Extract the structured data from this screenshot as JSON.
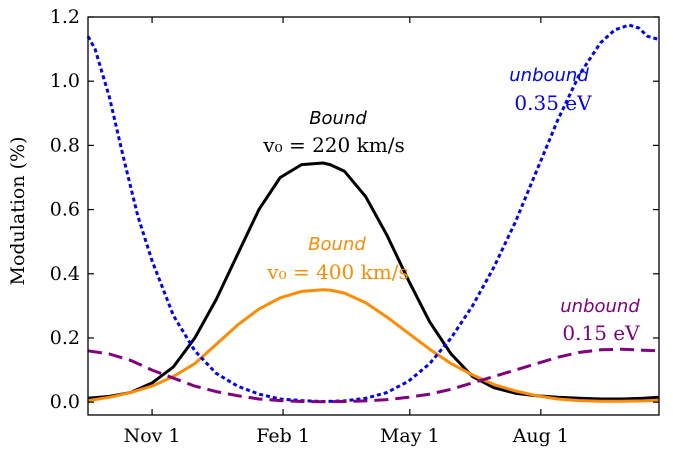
{
  "chart_data": {
    "type": "line",
    "title": "",
    "xlabel": "",
    "ylabel": "Modulation (%)",
    "xlim": [
      -45,
      356
    ],
    "ylim": [
      -0.04,
      1.2
    ],
    "x_unit": "days relative to Nov 1",
    "xticks": [
      {
        "value": 0,
        "label": "Nov 1"
      },
      {
        "value": 92,
        "label": "Feb 1"
      },
      {
        "value": 181,
        "label": "May 1"
      },
      {
        "value": 273,
        "label": "Aug 1"
      }
    ],
    "yticks": [
      {
        "value": 0.0,
        "label": "0.0"
      },
      {
        "value": 0.2,
        "label": "0.2"
      },
      {
        "value": 0.4,
        "label": "0.4"
      },
      {
        "value": 0.6,
        "label": "0.6"
      },
      {
        "value": 0.8,
        "label": "0.8"
      },
      {
        "value": 1.0,
        "label": "1.0"
      },
      {
        "value": 1.2,
        "label": "1.2"
      }
    ],
    "grid": false,
    "series": [
      {
        "key": "bound220",
        "color": "#000000",
        "style": "solid",
        "x": [
          -45,
          -30,
          -15,
          0,
          15,
          30,
          45,
          60,
          75,
          90,
          105,
          120,
          125,
          135,
          150,
          165,
          180,
          195,
          210,
          225,
          240,
          255,
          270,
          285,
          300,
          315,
          330,
          345,
          356
        ],
        "y": [
          0.012,
          0.018,
          0.03,
          0.06,
          0.11,
          0.2,
          0.32,
          0.46,
          0.6,
          0.7,
          0.74,
          0.745,
          0.74,
          0.72,
          0.64,
          0.52,
          0.38,
          0.25,
          0.15,
          0.08,
          0.045,
          0.028,
          0.02,
          0.015,
          0.012,
          0.01,
          0.01,
          0.012,
          0.015
        ]
      },
      {
        "key": "bound400",
        "color": "#FF8C00",
        "style": "solid",
        "x": [
          -45,
          -30,
          -15,
          0,
          15,
          30,
          45,
          60,
          75,
          90,
          105,
          120,
          125,
          135,
          150,
          165,
          180,
          195,
          210,
          225,
          240,
          255,
          270,
          285,
          300,
          315,
          330,
          345,
          356
        ],
        "y": [
          0.005,
          0.015,
          0.03,
          0.05,
          0.08,
          0.12,
          0.18,
          0.24,
          0.29,
          0.325,
          0.345,
          0.35,
          0.349,
          0.34,
          0.31,
          0.265,
          0.215,
          0.165,
          0.12,
          0.085,
          0.055,
          0.035,
          0.02,
          0.01,
          0.005,
          0.003,
          0.003,
          0.004,
          0.006
        ]
      },
      {
        "key": "unbound035",
        "color": "#0000FF",
        "style": "dotted",
        "x": [
          -45,
          -40,
          -30,
          -20,
          -10,
          0,
          15,
          30,
          45,
          60,
          75,
          90,
          105,
          120,
          135,
          150,
          165,
          180,
          195,
          210,
          225,
          240,
          255,
          270,
          285,
          300,
          315,
          325,
          335,
          342,
          348,
          356
        ],
        "y": [
          1.14,
          1.1,
          0.95,
          0.76,
          0.58,
          0.44,
          0.27,
          0.16,
          0.09,
          0.05,
          0.025,
          0.01,
          0.005,
          0.002,
          0.004,
          0.012,
          0.03,
          0.065,
          0.12,
          0.2,
          0.3,
          0.42,
          0.56,
          0.72,
          0.88,
          1.02,
          1.12,
          1.16,
          1.175,
          1.165,
          1.14,
          1.13
        ]
      },
      {
        "key": "unbound015",
        "color": "#800080",
        "style": "dashed",
        "x": [
          -45,
          -30,
          -15,
          0,
          15,
          30,
          45,
          60,
          75,
          90,
          105,
          120,
          135,
          150,
          165,
          180,
          195,
          210,
          225,
          240,
          255,
          270,
          285,
          300,
          315,
          330,
          345,
          356
        ],
        "y": [
          0.16,
          0.15,
          0.13,
          0.1,
          0.075,
          0.05,
          0.033,
          0.02,
          0.01,
          0.005,
          0.002,
          0.001,
          0.002,
          0.004,
          0.008,
          0.015,
          0.025,
          0.04,
          0.06,
          0.08,
          0.1,
          0.12,
          0.14,
          0.155,
          0.163,
          0.165,
          0.162,
          0.16
        ]
      }
    ],
    "annotations": [
      {
        "key": "ann_bound220",
        "name": "Bound",
        "param": "v₀ = 220 km/s",
        "color": "#000000"
      },
      {
        "key": "ann_bound400",
        "name": "Bound",
        "param": "v₀ = 400 km/s",
        "color": "#FF8C00"
      },
      {
        "key": "ann_unbound035",
        "name": "unbound",
        "param": "0.35 eV",
        "color": "#0000FF"
      },
      {
        "key": "ann_unbound015",
        "name": "unbound",
        "param": "0.15 eV",
        "color": "#800080"
      }
    ]
  }
}
